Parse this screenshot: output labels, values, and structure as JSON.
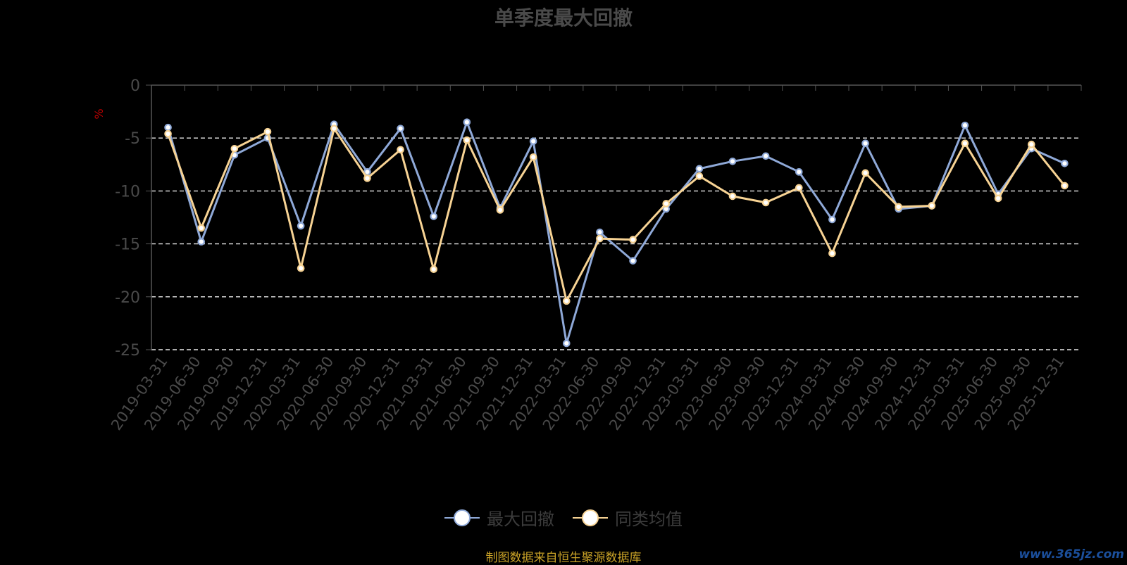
{
  "title": "单季度最大回撤",
  "source": "制图数据来自恒生聚源数据库",
  "watermark": "www.365jz.com",
  "chart_data": {
    "type": "line",
    "title": "单季度最大回撤",
    "ylabel": "%",
    "xlabel": "",
    "ylim": [
      -25,
      0
    ],
    "yticks": [
      0,
      -5,
      -10,
      -15,
      -20,
      -25
    ],
    "grid": true,
    "legend_position": "bottom-center",
    "categories": [
      "2019-03-31",
      "2019-06-30",
      "2019-09-30",
      "2019-12-31",
      "2020-03-31",
      "2020-06-30",
      "2020-09-30",
      "2020-12-31",
      "2021-03-31",
      "2021-06-30",
      "2021-09-30",
      "2021-12-31",
      "2022-03-31",
      "2022-06-30",
      "2022-09-30",
      "2022-12-31",
      "2023-03-31",
      "2023-06-30",
      "2023-09-30",
      "2023-12-31",
      "2024-03-31",
      "2024-06-30",
      "2024-09-30",
      "2024-12-31",
      "2025-03-31",
      "2025-06-30",
      "2025-09-30",
      "2025-12-31"
    ],
    "series": [
      {
        "name": "最大回撤",
        "color": "#8fa9d8",
        "values": [
          -4.0,
          -14.8,
          -6.6,
          -5.0,
          -13.3,
          -3.7,
          -8.2,
          -4.1,
          -12.4,
          -3.5,
          -11.6,
          -5.3,
          -24.4,
          -13.9,
          -16.6,
          -11.7,
          -7.9,
          -7.2,
          -6.7,
          -8.2,
          -12.7,
          -5.5,
          -11.7,
          -11.4,
          -3.8,
          -10.3,
          -6.0,
          -7.4
        ]
      },
      {
        "name": "同类均值",
        "color": "#f7d394",
        "values": [
          -4.6,
          -13.5,
          -6.0,
          -4.4,
          -17.3,
          -4.1,
          -8.8,
          -6.1,
          -17.4,
          -5.2,
          -11.8,
          -6.8,
          -20.4,
          -14.5,
          -14.6,
          -11.2,
          -8.6,
          -10.5,
          -11.1,
          -9.7,
          -15.9,
          -8.3,
          -11.5,
          -11.4,
          -5.5,
          -10.7,
          -5.6,
          -9.5
        ]
      }
    ]
  }
}
